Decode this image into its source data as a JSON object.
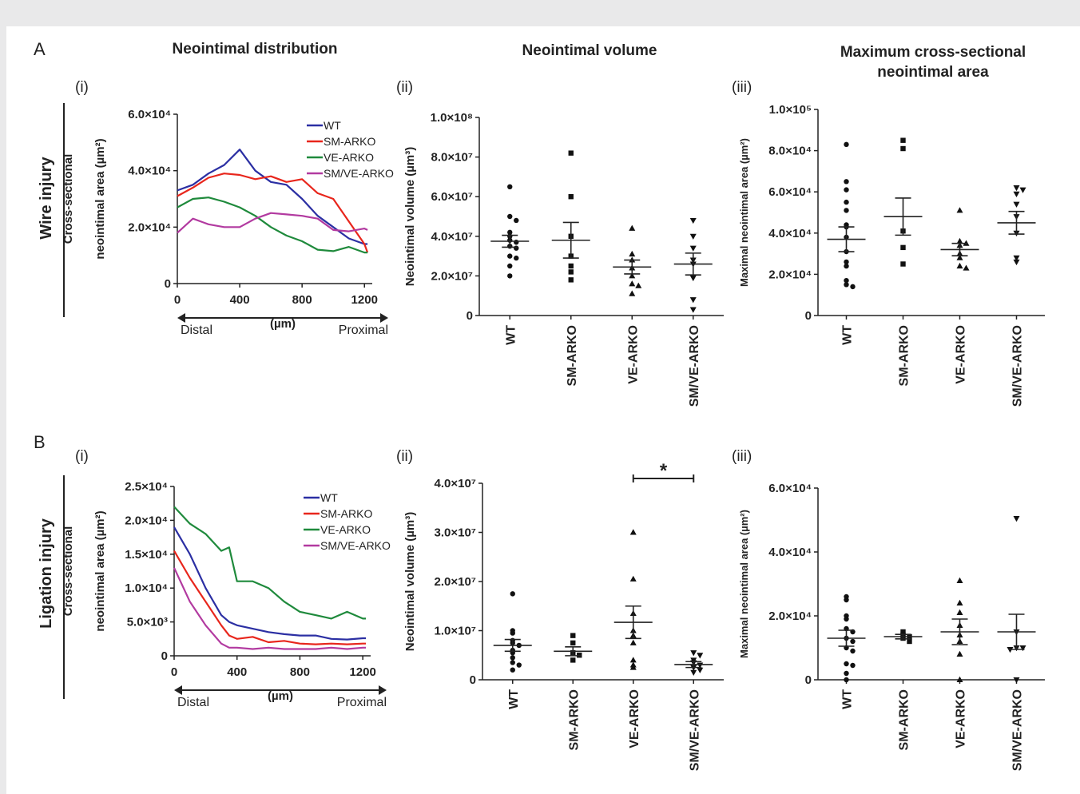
{
  "figure": {
    "panel_A_label": "A",
    "panel_B_label": "B",
    "row_A_label": "Wire injury",
    "row_B_label": "Ligation injury",
    "col1_title": "Neointimal distribution",
    "col2_title": "Neointimal volume",
    "col3_title_line1": "Maximum cross-sectional",
    "col3_title_line2": "neointimal area",
    "sub_i": "(i)",
    "sub_ii": "(ii)",
    "sub_iii": "(iii)"
  },
  "chart_data": [
    {
      "id": "Ai",
      "type": "line",
      "title": "Neointimal distribution",
      "ylabel_line1": "Cross-sectional",
      "ylabel_line2": "neointimal area (µm²)",
      "xlabel": "(µm)",
      "x_left_label": "Distal",
      "x_right_label": "Proximal",
      "xlim": [
        0,
        1250
      ],
      "ylim": [
        0,
        60000
      ],
      "xticks": [
        0,
        400,
        800,
        1200
      ],
      "yticks": [
        0,
        20000,
        40000,
        60000
      ],
      "ytick_labels": [
        "0",
        "2.0×10⁴",
        "4.0×10⁴",
        "6.0×10⁴"
      ],
      "x": [
        0,
        100,
        200,
        300,
        400,
        500,
        600,
        700,
        800,
        900,
        1000,
        1100,
        1200,
        1220
      ],
      "series": [
        {
          "name": "WT",
          "color": "#2b2fa3",
          "values": [
            33000,
            35000,
            39000,
            42000,
            47500,
            40000,
            36000,
            35000,
            30000,
            24000,
            20000,
            16000,
            14000,
            14000
          ]
        },
        {
          "name": "SM-ARKO",
          "color": "#e8261c",
          "values": [
            31000,
            34000,
            37500,
            39000,
            38500,
            37000,
            38000,
            36000,
            37000,
            32000,
            30000,
            22000,
            14000,
            11000
          ]
        },
        {
          "name": "VE-ARKO",
          "color": "#1f8a3c",
          "values": [
            27000,
            30000,
            30500,
            29000,
            27000,
            24000,
            20000,
            17000,
            15000,
            12000,
            11500,
            13000,
            11000,
            11000
          ]
        },
        {
          "name": "SM/VE-ARKO",
          "color": "#b23aa0",
          "values": [
            18000,
            23000,
            21000,
            20000,
            20000,
            23000,
            25000,
            24500,
            24000,
            23000,
            19000,
            18500,
            19500,
            19000
          ]
        }
      ]
    },
    {
      "id": "Aii",
      "type": "scatter",
      "title": "Neointimal volume",
      "ylabel": "Neointimal volume (µm³)",
      "ylim": [
        0,
        100000000
      ],
      "yticks": [
        0,
        20000000,
        40000000,
        60000000,
        80000000,
        100000000
      ],
      "ytick_labels": [
        "0",
        "2.0×10⁷",
        "4.0×10⁷",
        "6.0×10⁷",
        "8.0×10⁷",
        "1.0×10⁸"
      ],
      "categories": [
        "WT",
        "SM-ARKO",
        "VE-ARKO",
        "SM/VE-ARKO"
      ],
      "markers": [
        "circle",
        "square",
        "triangle",
        "triangle-down"
      ],
      "points": [
        [
          65000000,
          50000000,
          48000000,
          42000000,
          40000000,
          38000000,
          37000000,
          35000000,
          34000000,
          30000000,
          29000000,
          25000000,
          20000000
        ],
        [
          82000000,
          60000000,
          40000000,
          30000000,
          25000000,
          22000000,
          18000000
        ],
        [
          44000000,
          31000000,
          28000000,
          24000000,
          20000000,
          16000000,
          15000000,
          11000000
        ],
        [
          48000000,
          40000000,
          34000000,
          28000000,
          26000000,
          19000000,
          8000000,
          3000000
        ]
      ],
      "mean": [
        37500000,
        38000000,
        24500000,
        26000000
      ],
      "sem": [
        3000000,
        9000000,
        3500000,
        5500000
      ]
    },
    {
      "id": "Aiii",
      "type": "scatter",
      "title": "Maximum cross-sectional neointimal area",
      "ylabel": "Maximal neointimal area (µm²)",
      "ylim": [
        0,
        100000
      ],
      "yticks": [
        0,
        20000,
        40000,
        60000,
        80000,
        100000
      ],
      "ytick_labels": [
        "0",
        "2.0×10⁴",
        "4.0×10⁴",
        "6.0×10⁴",
        "8.0×10⁴",
        "1.0×10⁵"
      ],
      "categories": [
        "WT",
        "SM-ARKO",
        "VE-ARKO",
        "SM/VE-ARKO"
      ],
      "markers": [
        "circle",
        "square",
        "triangle",
        "triangle-down"
      ],
      "points": [
        [
          83000,
          65000,
          61000,
          55000,
          51000,
          44000,
          43000,
          38000,
          31000,
          26000,
          24000,
          17000,
          15000,
          14000
        ],
        [
          85000,
          81000,
          41000,
          33000,
          25000
        ],
        [
          51000,
          36000,
          35000,
          34000,
          30000,
          28000,
          24000,
          23000
        ],
        [
          62000,
          61000,
          59000,
          54000,
          48000,
          40000,
          28000,
          26000
        ]
      ],
      "mean": [
        37000,
        48000,
        32000,
        45000
      ],
      "sem": [
        6000,
        9000,
        3000,
        5500
      ]
    },
    {
      "id": "Bi",
      "type": "line",
      "ylabel_line1": "Cross-sectional",
      "ylabel_line2": "neointimal area (µm²)",
      "xlabel": "(µm)",
      "x_left_label": "Distal",
      "x_right_label": "Proximal",
      "xlim": [
        0,
        1250
      ],
      "ylim": [
        0,
        25000
      ],
      "xticks": [
        0,
        400,
        800,
        1200
      ],
      "yticks": [
        0,
        5000,
        10000,
        15000,
        20000,
        25000
      ],
      "ytick_labels": [
        "0",
        "5.0×10³",
        "1.0×10⁴",
        "1.5×10⁴",
        "2.0×10⁴",
        "2.5×10⁴"
      ],
      "x": [
        0,
        100,
        200,
        300,
        350,
        400,
        500,
        600,
        700,
        800,
        900,
        1000,
        1100,
        1200,
        1220
      ],
      "series": [
        {
          "name": "WT",
          "color": "#2b2fa3",
          "values": [
            19000,
            15000,
            10000,
            6000,
            5000,
            4500,
            4000,
            3500,
            3200,
            3000,
            3000,
            2500,
            2400,
            2600,
            2600
          ]
        },
        {
          "name": "SM-ARKO",
          "color": "#e8261c",
          "values": [
            15500,
            11500,
            8000,
            4500,
            3000,
            2500,
            2800,
            2000,
            2200,
            1800,
            1700,
            1800,
            1700,
            1800,
            1800
          ]
        },
        {
          "name": "VE-ARKO",
          "color": "#1f8a3c",
          "values": [
            22000,
            19500,
            18000,
            15500,
            16000,
            11000,
            11000,
            10000,
            8000,
            6500,
            6000,
            5500,
            6500,
            5500,
            5500
          ]
        },
        {
          "name": "SM/VE-ARKO",
          "color": "#b23aa0",
          "values": [
            13000,
            8000,
            4500,
            1800,
            1200,
            1200,
            1000,
            1200,
            1000,
            1000,
            1000,
            1200,
            1000,
            1200,
            1200
          ]
        }
      ]
    },
    {
      "id": "Bii",
      "type": "scatter",
      "ylabel": "Neointimal volume (µm³)",
      "ylim": [
        0,
        40000000
      ],
      "yticks": [
        0,
        10000000,
        20000000,
        30000000,
        40000000
      ],
      "ytick_labels": [
        "0",
        "1.0×10⁷",
        "2.0×10⁷",
        "3.0×10⁷",
        "4.0×10⁷"
      ],
      "categories": [
        "WT",
        "SM-ARKO",
        "VE-ARKO",
        "SM/VE-ARKO"
      ],
      "markers": [
        "circle",
        "square",
        "triangle",
        "triangle-down"
      ],
      "points": [
        [
          17500000,
          10000000,
          9500000,
          8000000,
          7500000,
          7000000,
          6000000,
          5500000,
          4500000,
          3500000,
          3000000,
          2000000
        ],
        [
          9000000,
          7500000,
          5500000,
          5000000,
          4000000
        ],
        [
          30000000,
          20500000,
          13500000,
          10000000,
          9000000,
          7500000,
          4000000,
          3000000,
          2500000
        ],
        [
          5500000,
          5000000,
          4000000,
          3500000,
          3000000,
          2500000,
          2000000,
          1500000
        ]
      ],
      "mean": [
        7000000,
        5800000,
        11700000,
        3100000
      ],
      "sem": [
        1200000,
        900000,
        3300000,
        600000
      ],
      "significance": {
        "from": "VE-ARKO",
        "to": "SM/VE-ARKO",
        "label": "*"
      }
    },
    {
      "id": "Biii",
      "type": "scatter",
      "ylabel": "Maximal neointimal area (µm²)",
      "ylim": [
        0,
        60000
      ],
      "yticks": [
        0,
        20000,
        40000,
        60000
      ],
      "ytick_labels": [
        "0",
        "2.0×10⁴",
        "4.0×10⁴",
        "6.0×10⁴"
      ],
      "categories": [
        "WT",
        "SM-ARKO",
        "VE-ARKO",
        "SM/VE-ARKO"
      ],
      "markers": [
        "circle",
        "square",
        "triangle",
        "triangle-down"
      ],
      "points": [
        [
          26000,
          25000,
          20000,
          19000,
          16000,
          15000,
          13000,
          12000,
          10000,
          9000,
          5000,
          4500,
          2000,
          0
        ],
        [
          15000,
          14000,
          13500,
          13000,
          12000
        ],
        [
          31000,
          24000,
          21000,
          17000,
          14000,
          12000,
          8000,
          0
        ],
        [
          50500,
          15000,
          10000,
          10000,
          9500,
          0
        ]
      ],
      "mean": [
        13000,
        13500,
        15000,
        15000
      ],
      "sem": [
        2500,
        700,
        4000,
        5500
      ]
    }
  ]
}
